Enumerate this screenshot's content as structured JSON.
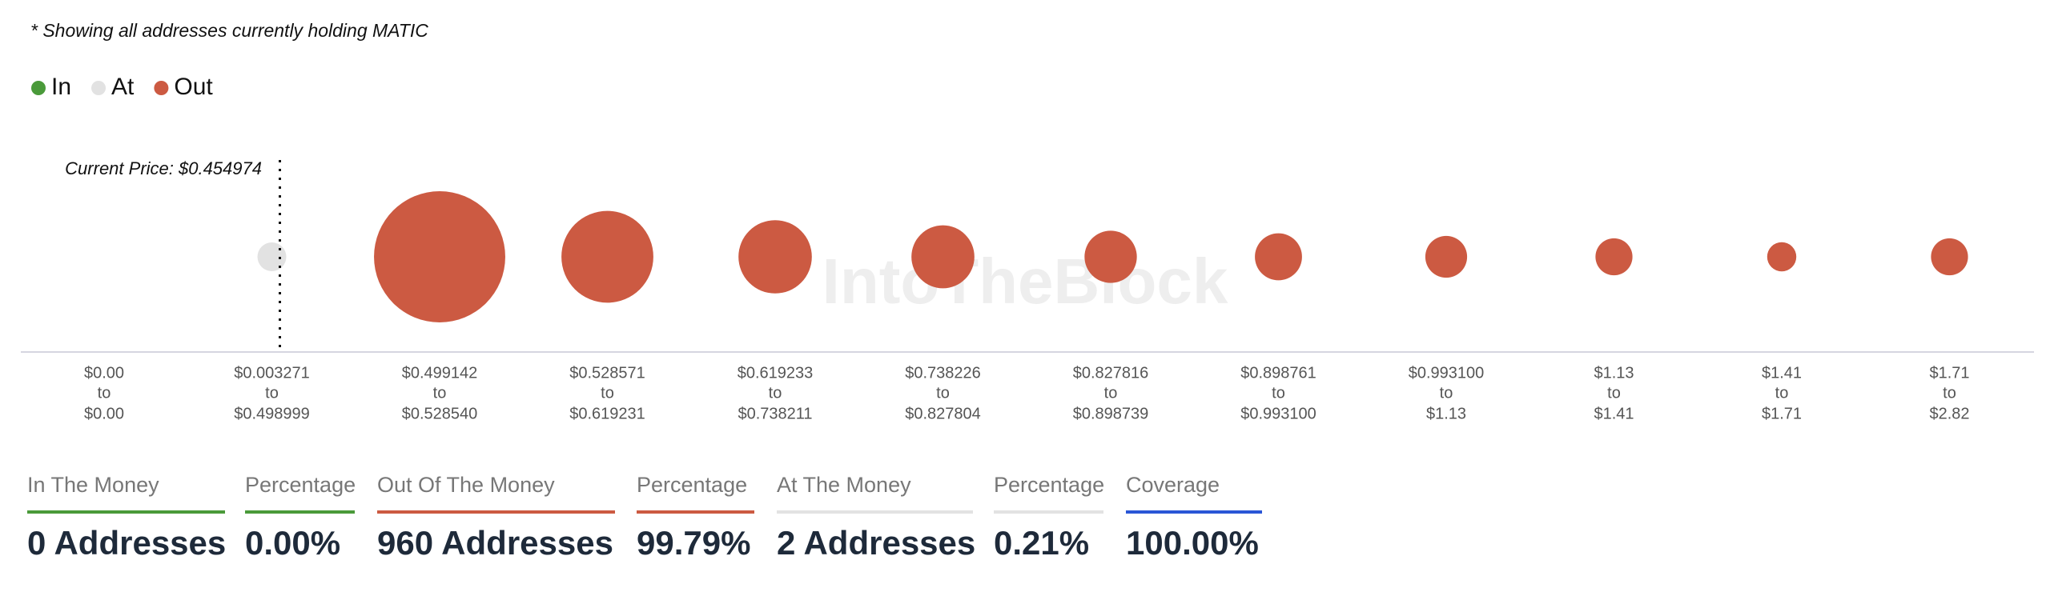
{
  "note": "* Showing all addresses currently holding MATIC",
  "chart_data": {
    "type": "bubble",
    "legend": [
      {
        "name": "In",
        "color": "#4a9a3a"
      },
      {
        "name": "At",
        "color": "#e2e2e2"
      },
      {
        "name": "Out",
        "color": "#cc5a42"
      }
    ],
    "annotation": "Current Price: $0.454974",
    "current_price": 0.454974,
    "watermark": "IntoTheBlock",
    "range_joiner": "to",
    "categories": [
      [
        "$0.00",
        "$0.00"
      ],
      [
        "$0.003271",
        "$0.498999"
      ],
      [
        "$0.499142",
        "$0.528540"
      ],
      [
        "$0.528571",
        "$0.619231"
      ],
      [
        "$0.619233",
        "$0.738211"
      ],
      [
        "$0.738226",
        "$0.827804"
      ],
      [
        "$0.827816",
        "$0.898739"
      ],
      [
        "$0.898761",
        "$0.993100"
      ],
      [
        "$0.993100",
        "$1.13"
      ],
      [
        "$1.13",
        "$1.41"
      ],
      [
        "$1.41",
        "$1.71"
      ],
      [
        "$1.71",
        "$2.82"
      ]
    ],
    "values": [
      0,
      2,
      365,
      179,
      114,
      84,
      58,
      47,
      37,
      29,
      18,
      29
    ],
    "point_colors": [
      "#4a9a3a",
      "#e2e2e2",
      "#cc5a42",
      "#cc5a42",
      "#cc5a42",
      "#cc5a42",
      "#cc5a42",
      "#cc5a42",
      "#cc5a42",
      "#cc5a42",
      "#cc5a42",
      "#cc5a42"
    ]
  },
  "stats": [
    {
      "label": "In The Money",
      "value": "0 Addresses",
      "color": "#4a9a3a"
    },
    {
      "label": "Percentage",
      "value": "0.00%",
      "color": "#4a9a3a"
    },
    {
      "label": "Out Of The Money",
      "value": "960 Addresses",
      "color": "#cc5a42"
    },
    {
      "label": "Percentage",
      "value": "99.79%",
      "color": "#cc5a42"
    },
    {
      "label": "At The Money",
      "value": "2 Addresses",
      "color": "#e2e2e2"
    },
    {
      "label": "Percentage",
      "value": "0.21%",
      "color": "#e2e2e2"
    },
    {
      "label": "Coverage",
      "value": "100.00%",
      "color": "#2a56d6"
    }
  ]
}
